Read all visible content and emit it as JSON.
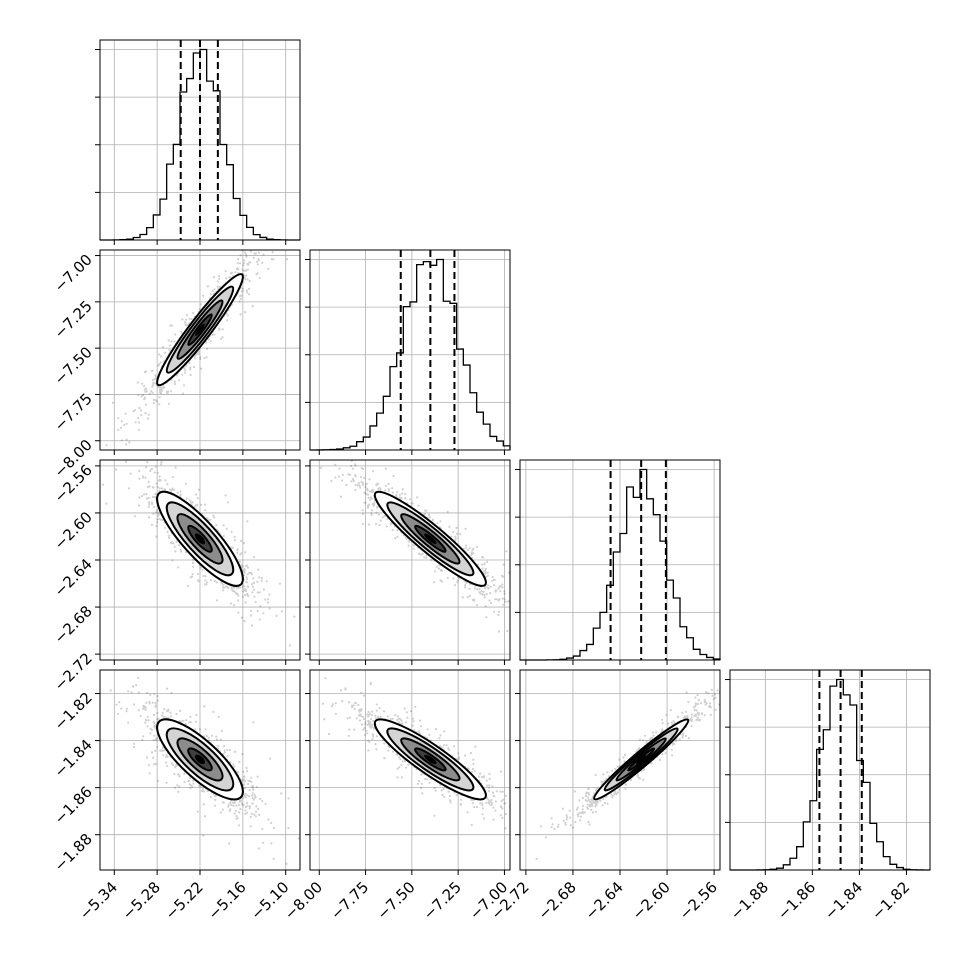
{
  "chart_data": {
    "type": "corner",
    "grid_lines": true,
    "parameters": [
      {
        "range": [
          -5.36,
          -5.08
        ],
        "ticks": [
          -5.34,
          -5.28,
          -5.22,
          -5.16,
          -5.1
        ],
        "tick_labels": [
          "−5.34",
          "−5.28",
          "−5.22",
          "−5.16",
          "−5.10"
        ],
        "quantiles": [
          -5.247,
          -5.22,
          -5.195
        ],
        "median": -5.22,
        "sigma": 0.03
      },
      {
        "range": [
          -8.05,
          -6.97
        ],
        "ticks": [
          -8.0,
          -7.75,
          -7.5,
          -7.25,
          -7.0
        ],
        "tick_labels": [
          "−8.00",
          "−7.75",
          "−7.50",
          "−7.25",
          "−7.00"
        ],
        "quantiles": [
          -7.56,
          -7.4,
          -7.27
        ],
        "median": -7.4,
        "sigma": 0.15
      },
      {
        "range": [
          -2.725,
          -2.555
        ],
        "ticks": [
          -2.72,
          -2.68,
          -2.64,
          -2.6,
          -2.56
        ],
        "tick_labels": [
          "−2.72",
          "−2.68",
          "−2.64",
          "−2.60",
          "−2.56"
        ],
        "quantiles": [
          -2.648,
          -2.622,
          -2.601
        ],
        "median": -2.622,
        "sigma": 0.02
      },
      {
        "range": [
          -1.895,
          -1.81
        ],
        "ticks": [
          -1.88,
          -1.86,
          -1.84,
          -1.82
        ],
        "tick_labels": [
          "−1.88",
          "−1.86",
          "−1.84",
          "−1.82"
        ],
        "quantiles": [
          -1.857,
          -1.848,
          -1.839
        ],
        "median": -1.848,
        "sigma": 0.0085
      }
    ],
    "correlations": {
      "0-1": 0.95,
      "0-2": -0.85,
      "1-2": -0.93,
      "0-3": -0.8,
      "1-3": -0.9,
      "2-3": 0.97
    },
    "hist_bins": 30,
    "scatter_points": 1600,
    "colors": {
      "line": "#000000",
      "grid": "#b0b0b0",
      "points": "#555555",
      "fill_levels": [
        "#ffffff",
        "#d4d4d4",
        "#8c8c8c",
        "#3f3f3f",
        "#000000"
      ]
    }
  }
}
